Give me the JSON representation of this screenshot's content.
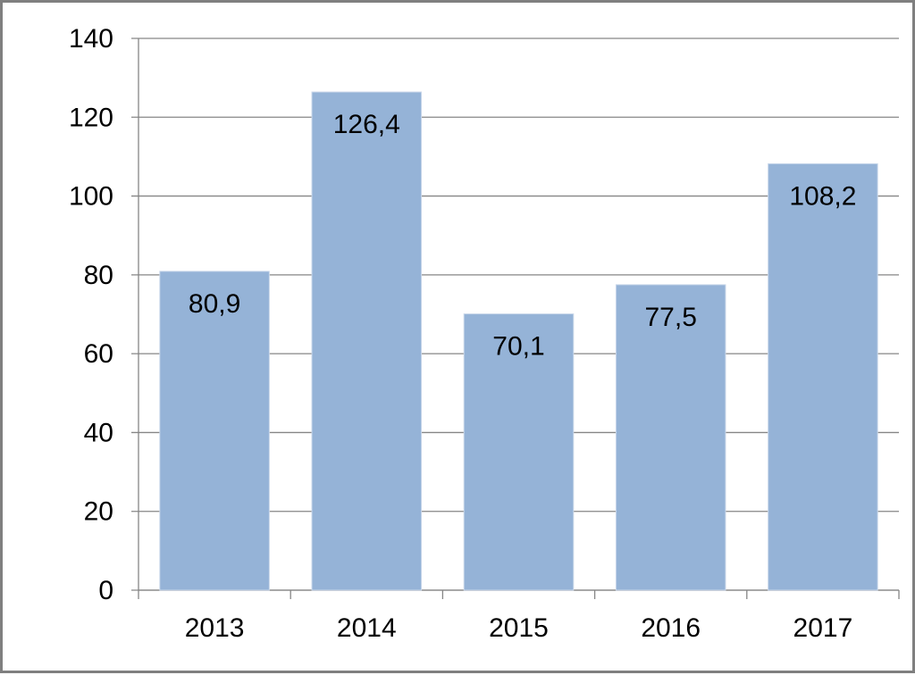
{
  "chart_data": {
    "type": "bar",
    "title": "",
    "xlabel": "",
    "ylabel": "",
    "categories": [
      "2013",
      "2014",
      "2015",
      "2016",
      "2017"
    ],
    "values": [
      80.9,
      126.4,
      70.1,
      77.5,
      108.2
    ],
    "data_labels": [
      "80,9",
      "126,4",
      "70,1",
      "77,5",
      "108,2"
    ],
    "ylim": [
      0,
      140
    ],
    "yticks": [
      "0",
      "20",
      "40",
      "60",
      "80",
      "100",
      "120",
      "140"
    ],
    "grid": true,
    "legend": "none",
    "colors": {
      "bar": "#95b3d7",
      "grid": "#868686",
      "frame": "#7f7f7f"
    }
  }
}
